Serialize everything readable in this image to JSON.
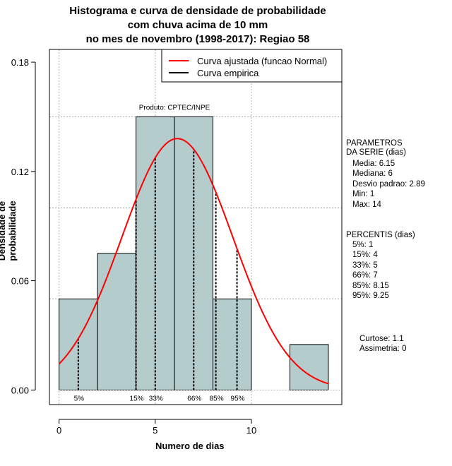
{
  "chart_data": {
    "type": "histogram",
    "title": [
      "Histograma e curva de densidade de probabilidade",
      "com chuva acima de 10 mm",
      "no mes de novembro (1998-2017): Regiao 58"
    ],
    "xlabel": "Numero de dias",
    "ylabel": "Densidade de probabilidade",
    "xlim": [
      -0.5,
      14.7
    ],
    "ylim": [
      -0.008,
      0.187
    ],
    "xticks": [
      0,
      5,
      10
    ],
    "yticks": [
      0.0,
      0.06,
      0.12,
      0.18
    ],
    "ytick_labels": [
      "0.00",
      "0.06",
      "0.12",
      "0.18"
    ],
    "bins": [
      {
        "x0": 0,
        "x1": 2,
        "density": 0.05
      },
      {
        "x0": 2,
        "x1": 4,
        "density": 0.075
      },
      {
        "x0": 4,
        "x1": 6,
        "density": 0.15
      },
      {
        "x0": 6,
        "x1": 8,
        "density": 0.15
      },
      {
        "x0": 8,
        "x1": 10,
        "density": 0.05
      },
      {
        "x0": 10,
        "x1": 12,
        "density": 0.0
      },
      {
        "x0": 12,
        "x1": 14,
        "density": 0.025
      }
    ],
    "normal_curve": {
      "mean": 6.15,
      "sd": 2.89,
      "x_from": 0,
      "x_to": 14,
      "color": "#ff0000"
    },
    "grid_y": [
      0.05,
      0.1,
      0.15
    ],
    "grid_x": [
      0,
      5,
      10
    ],
    "percentiles": [
      {
        "label": "5%",
        "x": 1
      },
      {
        "label": "15%",
        "x": 4
      },
      {
        "label": "33%",
        "x": 5
      },
      {
        "label": "66%",
        "x": 7
      },
      {
        "label": "85%",
        "x": 8.15
      },
      {
        "label": "95%",
        "x": 9.25
      }
    ],
    "legend": [
      {
        "label": "Curva ajustada (funcao Normal)",
        "color": "#ff0000"
      },
      {
        "label": "Curva empirica",
        "color": "#000000"
      }
    ],
    "legend_position": "top-right",
    "annotation": "Produto: CPTEC/INPE",
    "bar_color": "#b4cccc"
  },
  "params": {
    "header": [
      "PARAMETROS",
      "DA SERIE (dias)"
    ],
    "lines": [
      "Media: 6.15",
      "Mediana: 6",
      "Desvio padrao: 2.89",
      "Min: 1",
      "Max: 14"
    ]
  },
  "percentis": {
    "header": "PERCENTIS (dias)",
    "lines": [
      "5%: 1",
      "15%: 4",
      "33%: 5",
      "66%: 7",
      "85%: 8.15",
      "95%: 9.25"
    ]
  },
  "shape": {
    "curtose": "Curtose: 1.1",
    "assimetria": "Assimetria: 0"
  }
}
